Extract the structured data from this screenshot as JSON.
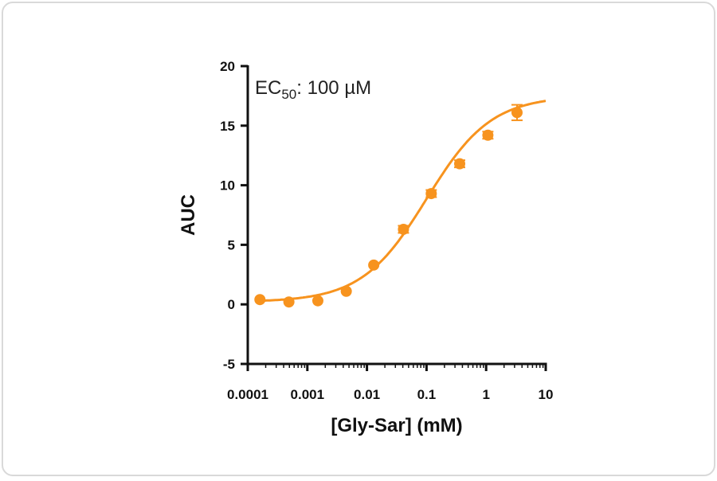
{
  "chart_data": {
    "type": "scatter",
    "xlabel": "[Gly-Sar] (mM)",
    "ylabel": "AUC",
    "xscale": "log",
    "xlim": [
      0.0001,
      10
    ],
    "ylim": [
      -5,
      20
    ],
    "xticks": [
      "0.0001",
      "0.001",
      "0.01",
      "0.1",
      "1",
      "10"
    ],
    "xtick_values": [
      0.0001,
      0.001,
      0.01,
      0.1,
      1,
      10
    ],
    "yticks": [
      -5,
      0,
      5,
      10,
      15,
      20
    ],
    "grid": false,
    "color": "#F7931E",
    "annotation": {
      "prefix": "EC",
      "subscript": "50",
      "suffix": ": 100 µM"
    },
    "points": {
      "x": [
        0.00016,
        0.00049,
        0.0015,
        0.0045,
        0.013,
        0.041,
        0.12,
        0.36,
        1.07,
        3.3
      ],
      "y": [
        0.4,
        0.2,
        0.3,
        1.1,
        3.3,
        6.3,
        9.3,
        11.8,
        14.2,
        16.1
      ],
      "error": [
        0.1,
        0.1,
        0.1,
        0.15,
        0.2,
        0.3,
        0.3,
        0.3,
        0.3,
        0.65
      ]
    },
    "fit": {
      "model": "sigmoidal dose-response",
      "bottom": 0.2,
      "top": 17.5,
      "ec50": 0.1,
      "hill": 0.8,
      "x_range": [
        0.00016,
        10
      ]
    }
  }
}
